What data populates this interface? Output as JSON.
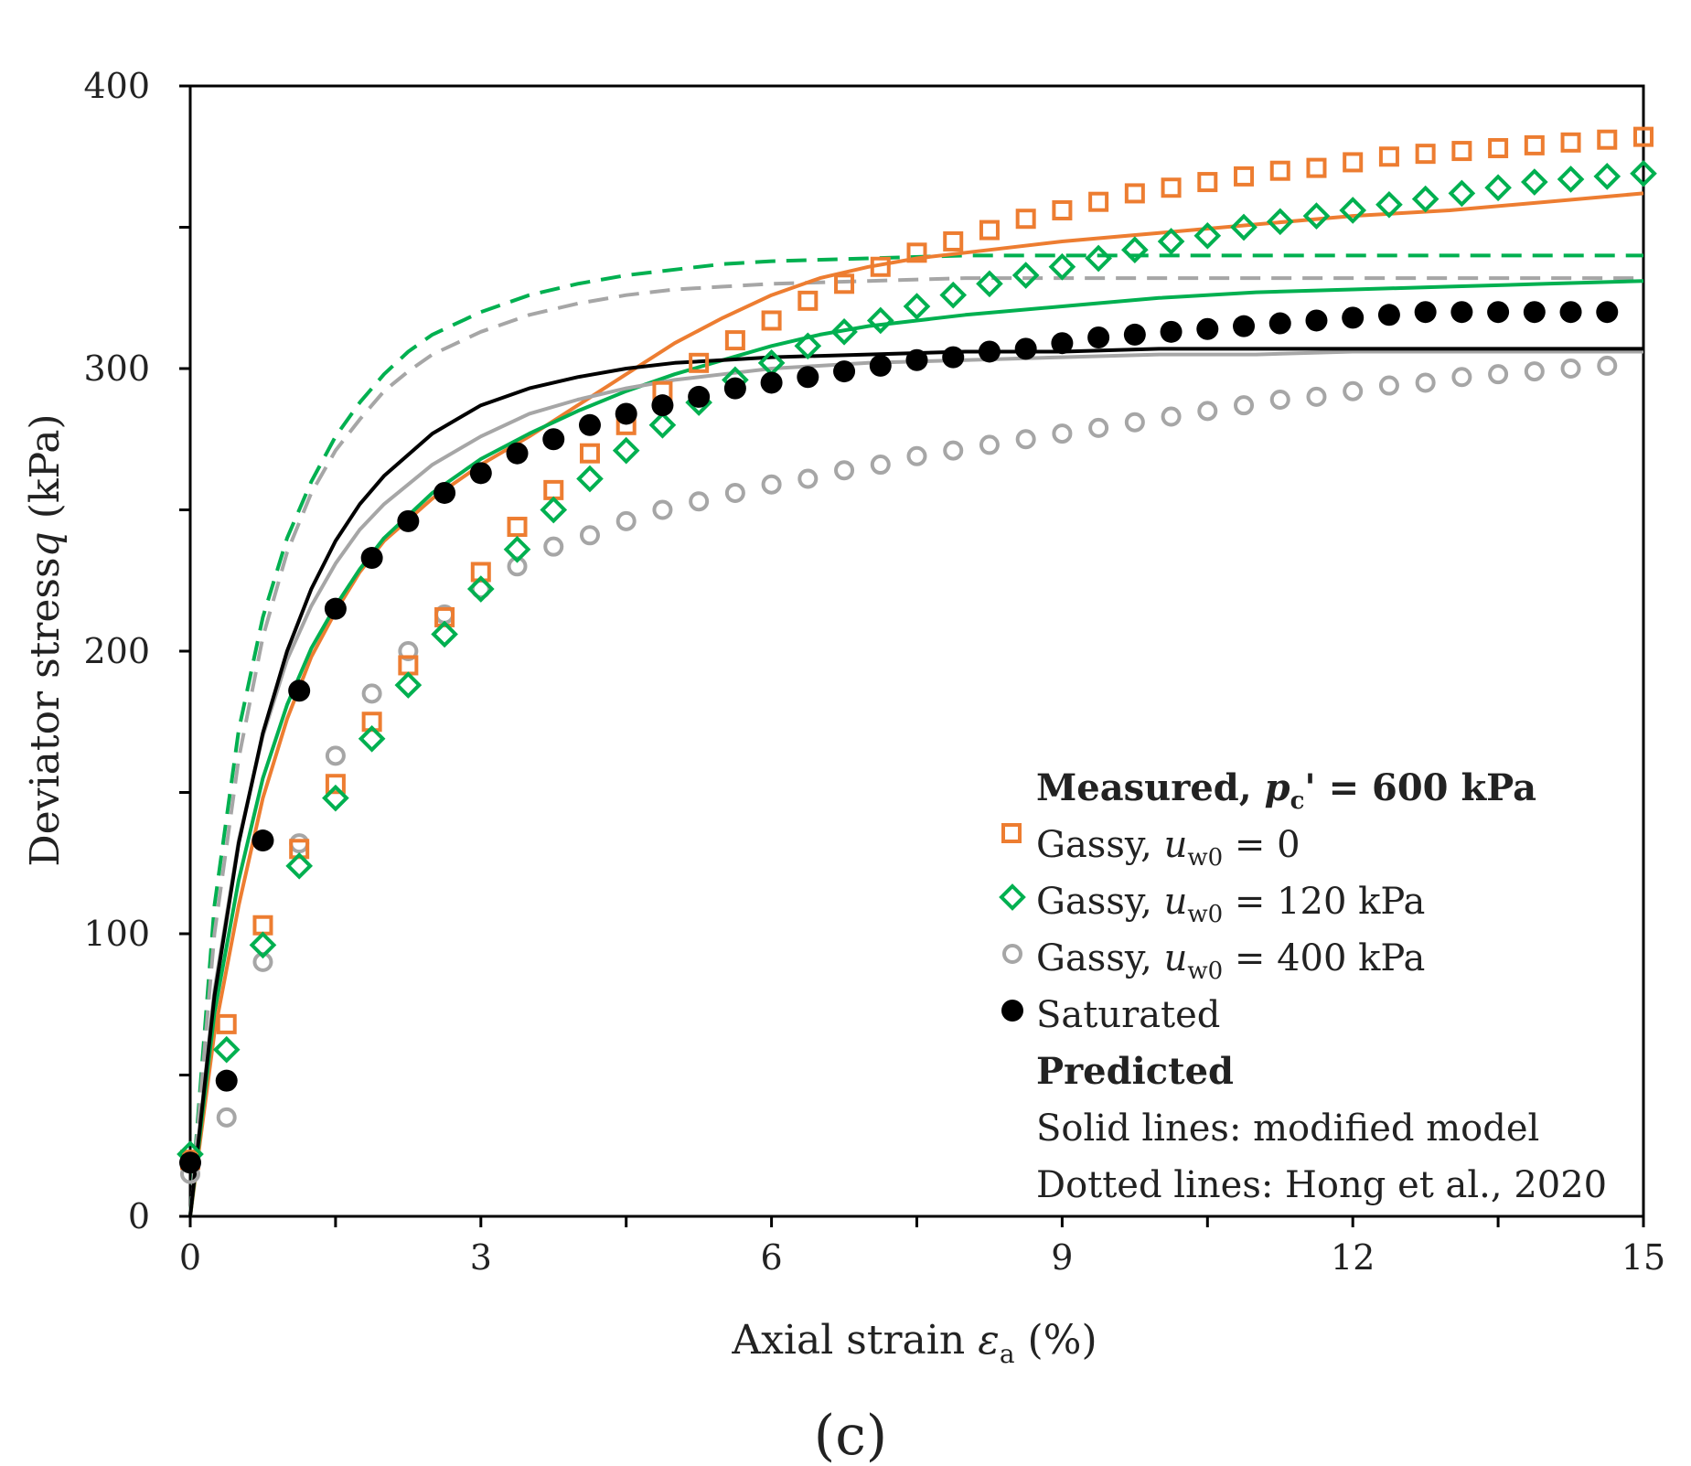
{
  "chart_data": {
    "type": "scatter",
    "panel_label": "(c)",
    "xlabel": {
      "text": "Axial strain ",
      "symbol": "ε",
      "sub": "a",
      "unit": " (%)"
    },
    "ylabel": {
      "text": "Deviator stress",
      "symbol": "q",
      "unit": " (kPa)"
    },
    "xlim": [
      0,
      15
    ],
    "ylim": [
      0,
      400
    ],
    "xticks": [
      0,
      3,
      6,
      9,
      12,
      15
    ],
    "yticks": [
      0,
      100,
      200,
      300,
      400
    ],
    "xtick_labels": [
      "0",
      "3",
      "6",
      "9",
      "12",
      "15"
    ],
    "ytick_labels": [
      "0",
      "100",
      "200",
      "300",
      "400"
    ],
    "grid": false,
    "legend_position": "bottom-right",
    "legend": {
      "measured_prefix": "Measured, ",
      "measured_var": "p",
      "measured_sub": "c",
      "measured_suffix": "' = 600 kPa",
      "gassy_prefix": "Gassy, ",
      "uw_var": "u",
      "uw_sub": "w0",
      "entry1_value": " = 0",
      "entry2_value": " = 120 kPa",
      "entry3_value": " = 400 kPa",
      "entry4_label": "Saturated",
      "predicted_title": "Predicted",
      "solid_note": "Solid lines: modified model",
      "dotted_note": "Dotted lines: Hong et al., 2020"
    },
    "colors": {
      "orange": "#ED7D31",
      "green": "#00B050",
      "gray": "#A6A6A6",
      "black": "#000000"
    },
    "measured_series": [
      {
        "marker": "square",
        "color": "#ED7D31",
        "x": [
          0,
          0.375,
          0.75,
          1.125,
          1.5,
          1.875,
          2.25,
          2.625,
          3.0,
          3.375,
          3.75,
          4.125,
          4.5,
          4.875,
          5.25,
          5.625,
          6.0,
          6.375,
          6.75,
          7.125,
          7.5,
          7.875,
          8.25,
          8.625,
          9.0,
          9.375,
          9.75,
          10.125,
          10.5,
          10.875,
          11.25,
          11.625,
          12.0,
          12.375,
          12.75,
          13.125,
          13.5,
          13.875,
          14.25,
          14.625,
          15.0
        ],
        "y": [
          20,
          68,
          103,
          130,
          153,
          175,
          195,
          212,
          228,
          244,
          257,
          270,
          280,
          292,
          302,
          310,
          317,
          324,
          330,
          336,
          341,
          345,
          349,
          353,
          356,
          359,
          362,
          364,
          366,
          368,
          370,
          371,
          373,
          375,
          376,
          377,
          378,
          379,
          380,
          381,
          382
        ]
      },
      {
        "marker": "diamond",
        "color": "#00B050",
        "x": [
          0,
          0.375,
          0.75,
          1.125,
          1.5,
          1.875,
          2.25,
          2.625,
          3.0,
          3.375,
          3.75,
          4.125,
          4.5,
          4.875,
          5.25,
          5.625,
          6.0,
          6.375,
          6.75,
          7.125,
          7.5,
          7.875,
          8.25,
          8.625,
          9.0,
          9.375,
          9.75,
          10.125,
          10.5,
          10.875,
          11.25,
          11.625,
          12.0,
          12.375,
          12.75,
          13.125,
          13.5,
          13.875,
          14.25,
          14.625,
          15.0
        ],
        "y": [
          22,
          59,
          96,
          124,
          148,
          169,
          188,
          206,
          222,
          236,
          250,
          261,
          271,
          280,
          288,
          296,
          302,
          308,
          313,
          317,
          322,
          326,
          330,
          333,
          336,
          339,
          342,
          345,
          347,
          350,
          352,
          354,
          356,
          358,
          360,
          362,
          364,
          366,
          367,
          368,
          369
        ]
      },
      {
        "marker": "circle-open",
        "color": "#A6A6A6",
        "x": [
          0,
          0.375,
          0.75,
          1.125,
          1.5,
          1.875,
          2.25,
          2.625,
          3.0,
          3.375,
          3.75,
          4.125,
          4.5,
          4.875,
          5.25,
          5.625,
          6.0,
          6.375,
          6.75,
          7.125,
          7.5,
          7.875,
          8.25,
          8.625,
          9.0,
          9.375,
          9.75,
          10.125,
          10.5,
          10.875,
          11.25,
          11.625,
          12.0,
          12.375,
          12.75,
          13.125,
          13.5,
          13.875,
          14.25,
          14.625
        ],
        "y": [
          15,
          35,
          90,
          132,
          163,
          185,
          200,
          213,
          222,
          230,
          237,
          241,
          246,
          250,
          253,
          256,
          259,
          261,
          264,
          266,
          269,
          271,
          273,
          275,
          277,
          279,
          281,
          283,
          285,
          287,
          289,
          290,
          292,
          294,
          295,
          297,
          298,
          299,
          300,
          301
        ]
      },
      {
        "marker": "circle-filled",
        "color": "#000000",
        "x": [
          0,
          0.375,
          0.75,
          1.125,
          1.5,
          1.875,
          2.25,
          2.625,
          3.0,
          3.375,
          3.75,
          4.125,
          4.5,
          4.875,
          5.25,
          5.625,
          6.0,
          6.375,
          6.75,
          7.125,
          7.5,
          7.875,
          8.25,
          8.625,
          9.0,
          9.375,
          9.75,
          10.125,
          10.5,
          10.875,
          11.25,
          11.625,
          12.0,
          12.375,
          12.75,
          13.125,
          13.5,
          13.875,
          14.25,
          14.625
        ],
        "y": [
          19,
          48,
          133,
          186,
          215,
          233,
          246,
          256,
          263,
          270,
          275,
          280,
          284,
          287,
          290,
          293,
          295,
          297,
          299,
          301,
          303,
          304,
          306,
          307,
          309,
          311,
          312,
          313,
          314,
          315,
          316,
          317,
          318,
          319,
          320,
          320,
          320,
          320,
          320,
          320
        ]
      }
    ],
    "predicted_series": [
      {
        "style": "solid",
        "color": "#ED7D31",
        "x": [
          0,
          0.25,
          0.5,
          0.75,
          1,
          1.25,
          1.5,
          1.75,
          2,
          2.5,
          3,
          3.5,
          4,
          4.5,
          5,
          5.5,
          6,
          6.5,
          7,
          7.5,
          8,
          9,
          10,
          11,
          12,
          13,
          14,
          15
        ],
        "y": [
          0,
          65,
          110,
          148,
          176,
          198,
          214,
          228,
          239,
          254,
          266,
          276,
          287,
          298,
          309,
          318,
          326,
          332,
          336,
          339,
          341,
          345,
          348,
          351,
          354,
          356,
          359,
          362
        ]
      },
      {
        "style": "solid",
        "color": "#00B050",
        "x": [
          0,
          0.25,
          0.5,
          0.75,
          1,
          1.25,
          1.5,
          1.75,
          2,
          2.5,
          3,
          3.5,
          4,
          4.5,
          5,
          5.5,
          6,
          6.5,
          7,
          7.5,
          8,
          9,
          10,
          11,
          12,
          13,
          14,
          15
        ],
        "y": [
          0,
          72,
          119,
          155,
          181,
          201,
          216,
          229,
          240,
          256,
          268,
          277,
          285,
          292,
          298,
          303,
          308,
          312,
          315,
          317,
          319,
          322,
          325,
          327,
          328,
          329,
          330,
          331
        ]
      },
      {
        "style": "solid",
        "color": "#A6A6A6",
        "x": [
          0,
          0.25,
          0.5,
          0.75,
          1,
          1.25,
          1.5,
          1.75,
          2,
          2.5,
          3,
          3.5,
          4,
          4.5,
          5,
          5.5,
          6,
          7,
          8,
          9,
          10,
          11,
          12,
          13,
          14,
          15
        ],
        "y": [
          0,
          80,
          133,
          170,
          197,
          216,
          231,
          243,
          252,
          266,
          276,
          284,
          289,
          293,
          296,
          298,
          300,
          302,
          303,
          304,
          305,
          305,
          306,
          306,
          306,
          306
        ]
      },
      {
        "style": "solid",
        "color": "#000000",
        "x": [
          0,
          0.25,
          0.5,
          0.75,
          1,
          1.25,
          1.5,
          1.75,
          2,
          2.5,
          3,
          3.5,
          4,
          4.5,
          5,
          5.5,
          6,
          7,
          8,
          9,
          10,
          11,
          12,
          13,
          14,
          15
        ],
        "y": [
          0,
          78,
          132,
          171,
          200,
          222,
          239,
          252,
          262,
          277,
          287,
          293,
          297,
          300,
          302,
          303,
          304,
          305,
          306,
          306,
          307,
          307,
          307,
          307,
          307,
          307
        ]
      },
      {
        "style": "dashed",
        "color": "#00B050",
        "x": [
          0,
          0.25,
          0.5,
          0.75,
          1,
          1.25,
          1.5,
          1.75,
          2,
          2.25,
          2.5,
          3,
          3.5,
          4,
          4.5,
          5,
          5.5,
          6,
          7,
          8,
          9,
          10,
          11,
          12,
          13,
          14,
          15
        ],
        "y": [
          0,
          110,
          172,
          212,
          240,
          260,
          276,
          288,
          298,
          306,
          312,
          320,
          326,
          330,
          333,
          335,
          337,
          338,
          339,
          340,
          340,
          340,
          340,
          340,
          340,
          340,
          340
        ]
      },
      {
        "style": "dashed",
        "color": "#A6A6A6",
        "x": [
          0,
          0.25,
          0.5,
          0.75,
          1,
          1.25,
          1.5,
          1.75,
          2,
          2.25,
          2.5,
          3,
          3.5,
          4,
          4.5,
          5,
          5.5,
          6,
          7,
          8,
          9,
          10,
          11,
          12,
          13,
          14,
          15
        ],
        "y": [
          0,
          100,
          162,
          205,
          235,
          256,
          271,
          282,
          292,
          299,
          305,
          313,
          319,
          323,
          326,
          328,
          329,
          330,
          331,
          332,
          332,
          332,
          332,
          332,
          332,
          332,
          332
        ]
      }
    ]
  }
}
